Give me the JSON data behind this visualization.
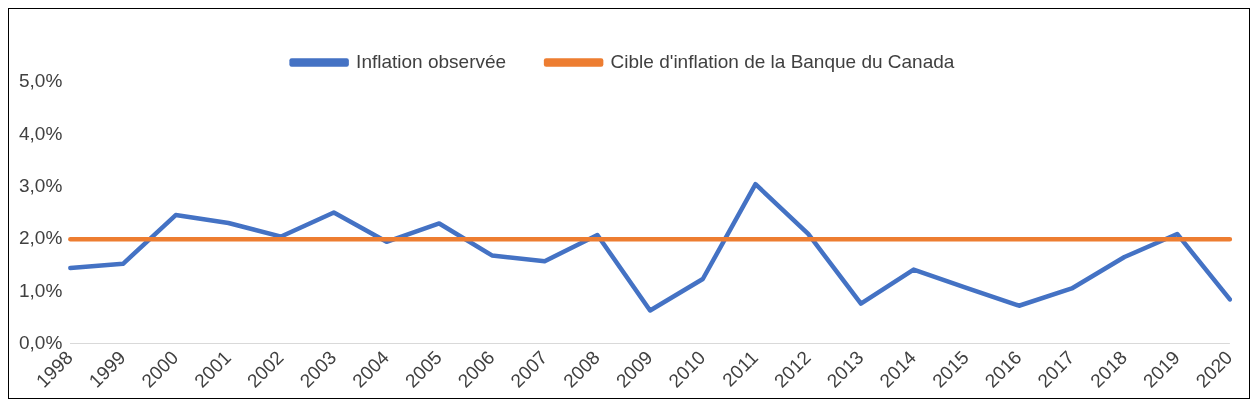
{
  "chart_data": {
    "type": "line",
    "categories": [
      "1998",
      "1999",
      "2000",
      "2001",
      "2002",
      "2003",
      "2004",
      "2005",
      "2006",
      "2007",
      "2008",
      "2009",
      "2010",
      "2011",
      "2012",
      "2013",
      "2014",
      "2015",
      "2016",
      "2017",
      "2018",
      "2019",
      "2020"
    ],
    "series": [
      {
        "name": "Inflation observée",
        "color": "#4472c4",
        "values": [
          1.45,
          1.53,
          2.46,
          2.31,
          2.05,
          2.51,
          1.95,
          2.3,
          1.69,
          1.58,
          2.08,
          0.64,
          1.24,
          3.05,
          2.1,
          0.77,
          1.42,
          1.07,
          0.73,
          1.06,
          1.66,
          2.1,
          0.85
        ]
      },
      {
        "name": "Cible d'inflation de la Banque du Canada",
        "color": "#ed7d31",
        "values": [
          2,
          2,
          2,
          2,
          2,
          2,
          2,
          2,
          2,
          2,
          2,
          2,
          2,
          2,
          2,
          2,
          2,
          2,
          2,
          2,
          2,
          2,
          2
        ]
      }
    ],
    "ylim": [
      0,
      5
    ],
    "yticks": [
      {
        "value": 0,
        "label": "0,0%"
      },
      {
        "value": 1,
        "label": "1,0%"
      },
      {
        "value": 2,
        "label": "2,0%"
      },
      {
        "value": 3,
        "label": "3,0%"
      },
      {
        "value": 4,
        "label": "4,0%"
      },
      {
        "value": 5,
        "label": "5,0%"
      }
    ],
    "grid": false,
    "legend": "top",
    "marker": "none",
    "line_style": "solid"
  }
}
